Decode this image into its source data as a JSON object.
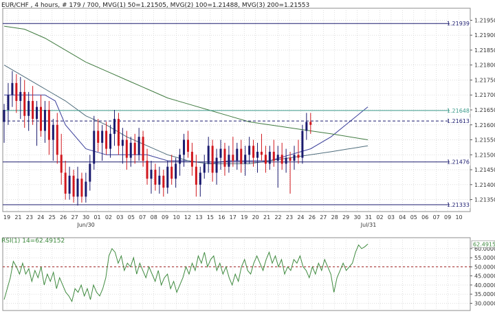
{
  "header": {
    "title": "EUR/CHF , 4 hours, # 179 / 700, MVG(1) 50=1.21505, MVG(2) 100=1.21488, MVG(3) 200=1.21553"
  },
  "colors": {
    "background": "#ffffff",
    "border": "#8c8c8c",
    "grid": "#c8c8c8",
    "bull_candle": "#1a1a6e",
    "bear_candle": "#d1171d",
    "mvg_50": "#3a3f9a",
    "mvg_100": "#4d6b7a",
    "mvg_200": "#3f7a3f",
    "hline": "#1a1a6e",
    "hline_teal": "#3b9a8a",
    "rsi_line": "#3f8a3f",
    "rsi_ref": "#a01e1e",
    "price_label_bg": "#ffffff"
  },
  "chart_data": [
    {
      "type": "candlestick",
      "title": "EUR/CHF , 4 hours, # 179 / 700, MVG(1) 50=1.21505, MVG(2) 100=1.21488, MVG(3) 200=1.21553",
      "ylim": [
        1.2131,
        1.2199
      ],
      "y_ticks": [
        "1.21950",
        "1.21900",
        "1.21850",
        "1.21800",
        "1.21750",
        "1.21700",
        "1.21650",
        "1.21600",
        "1.21550",
        "1.21500",
        "1.21450",
        "1.21400",
        "1.21350"
      ],
      "x_ticks": [
        "19",
        "21",
        "23",
        "24",
        "25",
        "26",
        "27",
        "30",
        "01",
        "02",
        "03",
        "05",
        "07",
        "08",
        "09",
        "10",
        "12",
        "13",
        "15",
        "16",
        "17",
        "19",
        "20",
        "21",
        "22",
        "23",
        "24",
        "26",
        "27",
        "28",
        "29",
        "30",
        "31",
        "02",
        "03",
        "04",
        "05",
        "06",
        "07",
        "09",
        "10"
      ],
      "x_sublabels": [
        "Jun/30",
        "Jul/31"
      ],
      "levels": [
        {
          "value": 1.21939,
          "label": "1.21939",
          "style": "solid"
        },
        {
          "value": 1.21648,
          "label": "1.21648",
          "style": "solid-teal"
        },
        {
          "value": 1.21613,
          "label": "1.21613",
          "style": "dashed"
        },
        {
          "value": 1.21476,
          "label": "1.21476",
          "style": "solid"
        },
        {
          "value": 1.21333,
          "label": "1.21333",
          "style": "solid"
        }
      ],
      "series": [
        {
          "name": "MVG(1) 50",
          "values": [
            [
              0,
              1.217
            ],
            [
              20,
              1.217
            ],
            [
              25,
              1.2168
            ],
            [
              30,
              1.216
            ],
            [
              40,
              1.2152
            ],
            [
              50,
              1.215
            ],
            [
              60,
              1.215
            ],
            [
              70,
              1.215
            ],
            [
              80,
              1.2148
            ],
            [
              90,
              1.2148
            ],
            [
              100,
              1.2147
            ],
            [
              110,
              1.2148
            ],
            [
              120,
              1.2148
            ],
            [
              130,
              1.2148
            ],
            [
              140,
              1.215
            ],
            [
              150,
              1.2152
            ],
            [
              160,
              1.2156
            ],
            [
              178,
              1.2166
            ]
          ]
        },
        {
          "name": "MVG(2) 100",
          "values": [
            [
              0,
              1.218
            ],
            [
              10,
              1.2176
            ],
            [
              20,
              1.2172
            ],
            [
              30,
              1.2168
            ],
            [
              40,
              1.2163
            ],
            [
              50,
              1.216
            ],
            [
              60,
              1.2156
            ],
            [
              70,
              1.2153
            ],
            [
              80,
              1.215
            ],
            [
              90,
              1.2148
            ],
            [
              100,
              1.2147
            ],
            [
              110,
              1.2147
            ],
            [
              120,
              1.2147
            ],
            [
              130,
              1.2148
            ],
            [
              140,
              1.2149
            ],
            [
              150,
              1.215
            ],
            [
              160,
              1.2151
            ],
            [
              178,
              1.2153
            ]
          ]
        },
        {
          "name": "MVG(3) 200",
          "values": [
            [
              0,
              1.2193
            ],
            [
              10,
              1.2192
            ],
            [
              20,
              1.2189
            ],
            [
              30,
              1.2185
            ],
            [
              40,
              1.2181
            ],
            [
              50,
              1.2178
            ],
            [
              60,
              1.2175
            ],
            [
              70,
              1.2172
            ],
            [
              80,
              1.2169
            ],
            [
              90,
              1.2167
            ],
            [
              100,
              1.2165
            ],
            [
              110,
              1.2163
            ],
            [
              120,
              1.2161
            ],
            [
              130,
              1.216
            ],
            [
              140,
              1.2159
            ],
            [
              150,
              1.2158
            ],
            [
              160,
              1.2157
            ],
            [
              178,
              1.2155
            ]
          ]
        }
      ],
      "candles": [
        [
          0,
          1.2161,
          1.2167,
          1.2154,
          1.2165
        ],
        [
          2,
          1.2165,
          1.2174,
          1.216,
          1.217
        ],
        [
          4,
          1.217,
          1.2178,
          1.2166,
          1.2174
        ],
        [
          6,
          1.2174,
          1.2177,
          1.2164,
          1.2168
        ],
        [
          8,
          1.2168,
          1.2176,
          1.2162,
          1.2171
        ],
        [
          10,
          1.2171,
          1.2175,
          1.2159,
          1.2163
        ],
        [
          12,
          1.2163,
          1.2171,
          1.2158,
          1.2168
        ],
        [
          14,
          1.2168,
          1.2173,
          1.216,
          1.2162
        ],
        [
          16,
          1.2162,
          1.2168,
          1.2153,
          1.2166
        ],
        [
          18,
          1.2166,
          1.217,
          1.2156,
          1.2158
        ],
        [
          20,
          1.2158,
          1.2168,
          1.2154,
          1.2165
        ],
        [
          22,
          1.2165,
          1.2168,
          1.215,
          1.2155
        ],
        [
          24,
          1.2155,
          1.2162,
          1.2148,
          1.216
        ],
        [
          26,
          1.216,
          1.2164,
          1.2147,
          1.215
        ],
        [
          28,
          1.215,
          1.2157,
          1.214,
          1.2144
        ],
        [
          30,
          1.2144,
          1.2148,
          1.2135,
          1.2137
        ],
        [
          32,
          1.2137,
          1.2146,
          1.2135,
          1.2143
        ],
        [
          34,
          1.2143,
          1.2145,
          1.2134,
          1.2136
        ],
        [
          36,
          1.2136,
          1.2146,
          1.2133,
          1.2142
        ],
        [
          38,
          1.2142,
          1.2144,
          1.2134,
          1.2136
        ],
        [
          40,
          1.2136,
          1.2144,
          1.2134,
          1.2141
        ],
        [
          42,
          1.2141,
          1.215,
          1.2138,
          1.2147
        ],
        [
          44,
          1.2147,
          1.2163,
          1.2145,
          1.2158
        ],
        [
          46,
          1.2158,
          1.2162,
          1.2151,
          1.2154
        ],
        [
          48,
          1.2154,
          1.216,
          1.2148,
          1.2158
        ],
        [
          50,
          1.2158,
          1.2161,
          1.215,
          1.2152
        ],
        [
          52,
          1.2152,
          1.216,
          1.2149,
          1.2157
        ],
        [
          54,
          1.2157,
          1.2165,
          1.2153,
          1.2162
        ],
        [
          56,
          1.2162,
          1.2164,
          1.215,
          1.2153
        ],
        [
          58,
          1.2153,
          1.2159,
          1.2147,
          1.2155
        ],
        [
          60,
          1.2155,
          1.2158,
          1.2145,
          1.2149
        ],
        [
          62,
          1.2149,
          1.2156,
          1.2146,
          1.2154
        ],
        [
          64,
          1.2154,
          1.2157,
          1.2147,
          1.215
        ],
        [
          66,
          1.215,
          1.2159,
          1.2148,
          1.2156
        ],
        [
          68,
          1.2156,
          1.2158,
          1.2146,
          1.2148
        ],
        [
          70,
          1.2148,
          1.2152,
          1.214,
          1.2142
        ],
        [
          72,
          1.2142,
          1.2148,
          1.2137,
          1.2145
        ],
        [
          74,
          1.2145,
          1.2147,
          1.2138,
          1.214
        ],
        [
          76,
          1.214,
          1.2146,
          1.2137,
          1.2143
        ],
        [
          78,
          1.2143,
          1.2145,
          1.2136,
          1.2139
        ],
        [
          80,
          1.2139,
          1.2148,
          1.2137,
          1.2146
        ],
        [
          82,
          1.2146,
          1.215,
          1.214,
          1.2142
        ],
        [
          84,
          1.2142,
          1.2149,
          1.2139,
          1.2147
        ],
        [
          86,
          1.2147,
          1.2152,
          1.2143,
          1.215
        ],
        [
          88,
          1.215,
          1.2157,
          1.2146,
          1.2155
        ],
        [
          90,
          1.2155,
          1.2158,
          1.2149,
          1.2151
        ],
        [
          92,
          1.2151,
          1.2154,
          1.2143,
          1.2146
        ],
        [
          94,
          1.2146,
          1.215,
          1.2136,
          1.214
        ],
        [
          96,
          1.214,
          1.2146,
          1.2136,
          1.2144
        ],
        [
          98,
          1.2144,
          1.215,
          1.2142,
          1.2147
        ],
        [
          100,
          1.2147,
          1.2156,
          1.2144,
          1.2153
        ],
        [
          102,
          1.2153,
          1.2155,
          1.2141,
          1.2144
        ],
        [
          104,
          1.2144,
          1.2152,
          1.214,
          1.2149
        ],
        [
          106,
          1.2149,
          1.2155,
          1.2145,
          1.2152
        ],
        [
          108,
          1.2152,
          1.2154,
          1.2143,
          1.2146
        ],
        [
          110,
          1.2146,
          1.2153,
          1.2144,
          1.215
        ],
        [
          112,
          1.215,
          1.2156,
          1.2146,
          1.2148
        ],
        [
          114,
          1.2148,
          1.2154,
          1.2145,
          1.2152
        ],
        [
          116,
          1.2152,
          1.2155,
          1.2144,
          1.2147
        ],
        [
          118,
          1.2147,
          1.2153,
          1.2143,
          1.215
        ],
        [
          120,
          1.215,
          1.2156,
          1.2147,
          1.2153
        ],
        [
          122,
          1.2153,
          1.2155,
          1.2146,
          1.2149
        ],
        [
          124,
          1.2149,
          1.2154,
          1.2144,
          1.2151
        ],
        [
          126,
          1.2151,
          1.2157,
          1.2148,
          1.215
        ],
        [
          128,
          1.215,
          1.2153,
          1.2144,
          1.2147
        ],
        [
          130,
          1.2147,
          1.2153,
          1.2145,
          1.2151
        ],
        [
          132,
          1.2151,
          1.2155,
          1.2146,
          1.2148
        ],
        [
          134,
          1.2148,
          1.2153,
          1.2139,
          1.215
        ],
        [
          136,
          1.215,
          1.2154,
          1.2145,
          1.2147
        ],
        [
          138,
          1.2147,
          1.2152,
          1.2144,
          1.2149
        ],
        [
          140,
          1.2149,
          1.2151,
          1.2137,
          1.2148
        ],
        [
          142,
          1.2148,
          1.2153,
          1.2145,
          1.215
        ],
        [
          144,
          1.215,
          1.2155,
          1.2147,
          1.2149
        ],
        [
          146,
          1.2149,
          1.216,
          1.2147,
          1.2158
        ],
        [
          148,
          1.2158,
          1.2164,
          1.2155,
          1.2161
        ],
        [
          150,
          1.2161,
          1.2164,
          1.2157,
          1.216
        ]
      ]
    },
    {
      "type": "line",
      "title": "RSI(1) 14=62.49152",
      "ylim": [
        26,
        66
      ],
      "y_ticks": [
        "60.00000",
        "55.00000",
        "50.00000",
        "45.00000",
        "40.00000",
        "35.00000",
        "30.00000"
      ],
      "reference": {
        "value": 50,
        "label": "50.00000"
      },
      "current": {
        "value": 62.49152,
        "label": "62.49152"
      },
      "series": [
        {
          "name": "RSI(1) 14",
          "values": [
            32,
            38,
            44,
            53,
            50,
            46,
            52,
            46,
            49,
            42,
            48,
            44,
            50,
            40,
            46,
            42,
            47,
            38,
            44,
            40,
            36,
            34,
            31,
            38,
            36,
            40,
            34,
            38,
            32,
            40,
            36,
            34,
            38,
            44,
            56,
            60,
            58,
            52,
            56,
            48,
            52,
            50,
            55,
            46,
            52,
            48,
            44,
            50,
            46,
            42,
            48,
            40,
            44,
            46,
            38,
            42,
            36,
            40,
            44,
            50,
            46,
            52,
            48,
            56,
            52,
            58,
            50,
            54,
            56,
            48,
            52,
            46,
            50,
            44,
            40,
            46,
            42,
            50,
            54,
            48,
            46,
            52,
            56,
            52,
            48,
            54,
            58,
            52,
            56,
            50,
            54,
            46,
            50,
            48,
            54,
            52,
            56,
            50,
            48,
            44,
            50,
            46,
            52,
            48,
            54,
            50,
            46,
            36,
            44,
            48,
            52,
            48,
            50,
            52,
            58,
            62,
            60,
            61,
            62.49
          ]
        }
      ]
    }
  ]
}
